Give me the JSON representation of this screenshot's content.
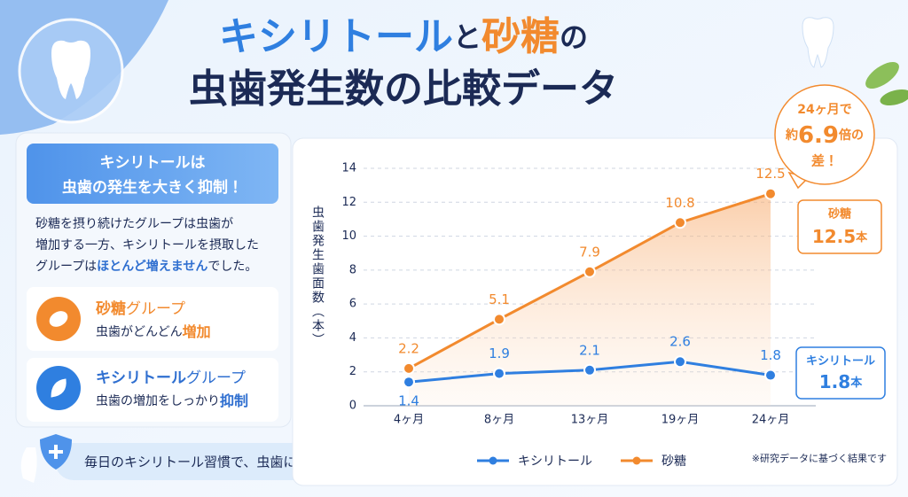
{
  "header": {
    "title_line1": [
      "キシリトール",
      "と",
      "砂糖",
      "の"
    ],
    "title_line2": "虫歯発生数の比較データ"
  },
  "summary": {
    "headline": [
      "キシリトールは",
      "虫歯の発生を大きく抑制！"
    ],
    "body_lines": [
      "砂糖を摂り続けたグループは虫歯が",
      "増加する一方、キシリトールを摂取した"
    ],
    "body_last": [
      "グループは",
      "ほとんど増えません",
      "でした。"
    ]
  },
  "groups": [
    {
      "title": [
        "砂糖",
        "グループ"
      ],
      "text": [
        "虫歯がどんどん",
        "増加"
      ]
    },
    {
      "title": [
        "キシリトール",
        "グループ"
      ],
      "text": [
        "虫歯の増加をしっかり",
        "抑制"
      ]
    }
  ],
  "footer": "毎日のキシリトール習慣で、虫歯に負けないお口へ！",
  "chart_data": {
    "type": "line",
    "y_label": "虫歯発生歯面数（本）",
    "categories": [
      "4ヶ月",
      "8ヶ月",
      "13ヶ月",
      "19ヶ月",
      "24ヶ月"
    ],
    "series": [
      {
        "name": "キシリトール",
        "color": "#2f7fe0",
        "values": [
          1.4,
          1.9,
          2.1,
          2.6,
          1.8
        ]
      },
      {
        "name": "砂糖",
        "color": "#f28a2e",
        "values": [
          2.2,
          5.1,
          7.9,
          10.8,
          12.5
        ]
      }
    ],
    "ylim": [
      0,
      14
    ],
    "yticks": [
      0,
      2,
      4,
      6,
      8,
      10,
      12,
      14
    ],
    "grid": true,
    "callout_unit": "本",
    "annotation": {
      "line1": "24ヶ月で",
      "prefix": "約",
      "ratio": 6.9,
      "suffix": "倍の",
      "line3": "差！"
    },
    "note": "※研究データに基づく結果です"
  }
}
